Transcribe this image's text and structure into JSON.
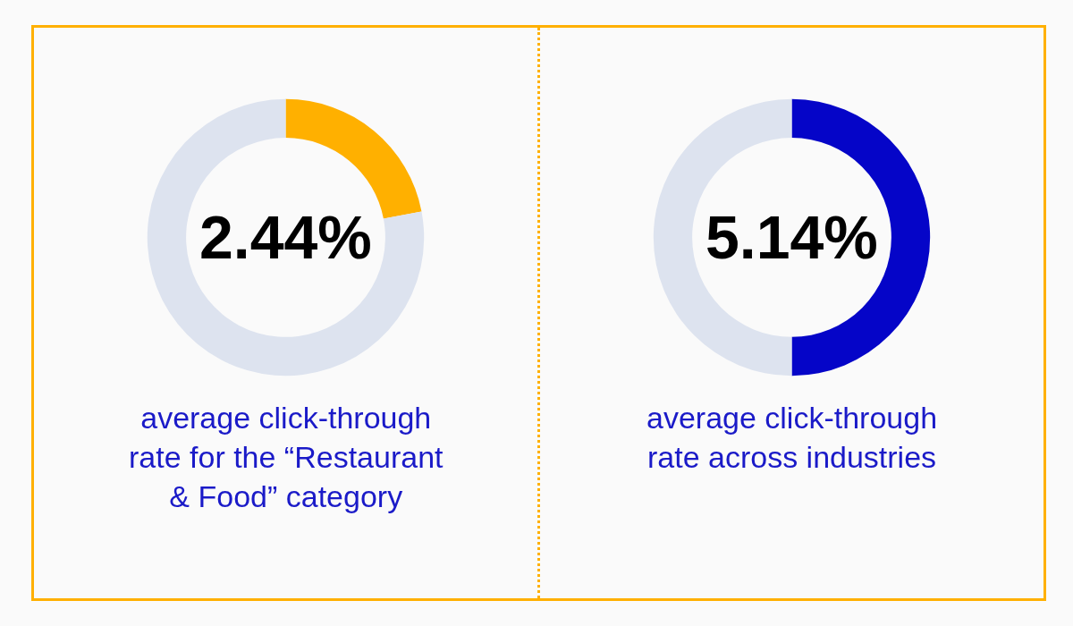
{
  "chart_data": [
    {
      "type": "donut",
      "categories": [
        null,
        null
      ],
      "values": [
        22,
        78
      ],
      "colors": [
        "#ffb000",
        "#dde3ef"
      ],
      "annotations": [
        "2.44%",
        "average click-through rate for the “Restaurant & Food” category"
      ]
    },
    {
      "type": "donut",
      "categories": [
        null,
        null
      ],
      "values": [
        50,
        50
      ],
      "colors": [
        "#0505c8",
        "#dde3ef"
      ],
      "annotations": [
        "5.14%",
        "average click-through rate across industries"
      ]
    }
  ]
}
